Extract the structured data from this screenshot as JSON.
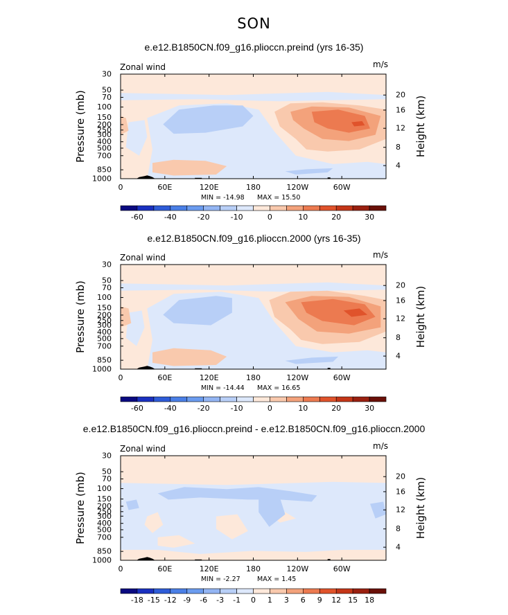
{
  "figure": {
    "title": "SON"
  },
  "chart_data": [
    {
      "type": "contour",
      "title": "e.e12.B1850CN.f09_g16.plioccn.preind (yrs 16-35)",
      "variable": "Zonal wind",
      "units": "m/s",
      "ylabel": "Pressure (mb)",
      "y2label": "Height (km)",
      "xticks": [
        "0",
        "60E",
        "120E",
        "180",
        "120W",
        "60W"
      ],
      "yticks": [
        "30",
        "50",
        "70",
        "100",
        "150",
        "200",
        "250",
        "300",
        "400",
        "500",
        "700",
        "850",
        "1000"
      ],
      "y2ticks": [
        "20",
        "16",
        "12",
        "8",
        "4"
      ],
      "min_text": "MIN = -14.98",
      "max_text": "MAX = 15.50",
      "colorbar": {
        "labels": [
          "-60",
          "-40",
          "-20",
          "-10",
          "0",
          "10",
          "20",
          "30"
        ],
        "colors": [
          "#0a0a80",
          "#1a30c0",
          "#2e5cd8",
          "#4a7fe6",
          "#6b9cef",
          "#93b5f3",
          "#b8cff7",
          "#dde8fb",
          "#fde8da",
          "#f9c9ad",
          "#f3a27b",
          "#ec7a50",
          "#e0532b",
          "#c43618",
          "#9a2010",
          "#6a1008"
        ]
      }
    },
    {
      "type": "contour",
      "title": "e.e12.B1850CN.f09_g16.plioccn.2000 (yrs 16-35)",
      "variable": "Zonal wind",
      "units": "m/s",
      "ylabel": "Pressure (mb)",
      "y2label": "Height (km)",
      "xticks": [
        "0",
        "60E",
        "120E",
        "180",
        "120W",
        "60W"
      ],
      "yticks": [
        "30",
        "50",
        "70",
        "100",
        "150",
        "200",
        "250",
        "300",
        "400",
        "500",
        "700",
        "850",
        "1000"
      ],
      "y2ticks": [
        "20",
        "16",
        "12",
        "8",
        "4"
      ],
      "min_text": "MIN = -14.44",
      "max_text": "MAX = 16.65",
      "colorbar": {
        "labels": [
          "-60",
          "-40",
          "-20",
          "-10",
          "0",
          "10",
          "20",
          "30"
        ],
        "colors": [
          "#0a0a80",
          "#1a30c0",
          "#2e5cd8",
          "#4a7fe6",
          "#6b9cef",
          "#93b5f3",
          "#b8cff7",
          "#dde8fb",
          "#fde8da",
          "#f9c9ad",
          "#f3a27b",
          "#ec7a50",
          "#e0532b",
          "#c43618",
          "#9a2010",
          "#6a1008"
        ]
      }
    },
    {
      "type": "contour",
      "title": "e.e12.B1850CN.f09_g16.plioccn.preind - e.e12.B1850CN.f09_g16.plioccn.2000",
      "variable": "Zonal wind",
      "units": "m/s",
      "ylabel": "Pressure (mb)",
      "y2label": "Height (km)",
      "xticks": [
        "0",
        "60E",
        "120E",
        "180",
        "120W",
        "60W"
      ],
      "yticks": [
        "30",
        "50",
        "70",
        "100",
        "150",
        "200",
        "250",
        "300",
        "400",
        "500",
        "700",
        "850",
        "1000"
      ],
      "y2ticks": [
        "20",
        "16",
        "12",
        "8",
        "4"
      ],
      "min_text": "MIN = -2.27",
      "max_text": "MAX = 1.45",
      "colorbar": {
        "labels": [
          "-18",
          "-15",
          "-12",
          "-9",
          "-6",
          "-3",
          "-1",
          "0",
          "1",
          "3",
          "6",
          "9",
          "12",
          "15",
          "18"
        ],
        "colors": [
          "#0a0a80",
          "#1a30c0",
          "#2e5cd8",
          "#4a7fe6",
          "#6b9cef",
          "#93b5f3",
          "#b8cff7",
          "#dde8fb",
          "#fde8da",
          "#f9c9ad",
          "#f3a27b",
          "#ec7a50",
          "#e0532b",
          "#c43618",
          "#9a2010",
          "#6a1008"
        ]
      }
    }
  ]
}
